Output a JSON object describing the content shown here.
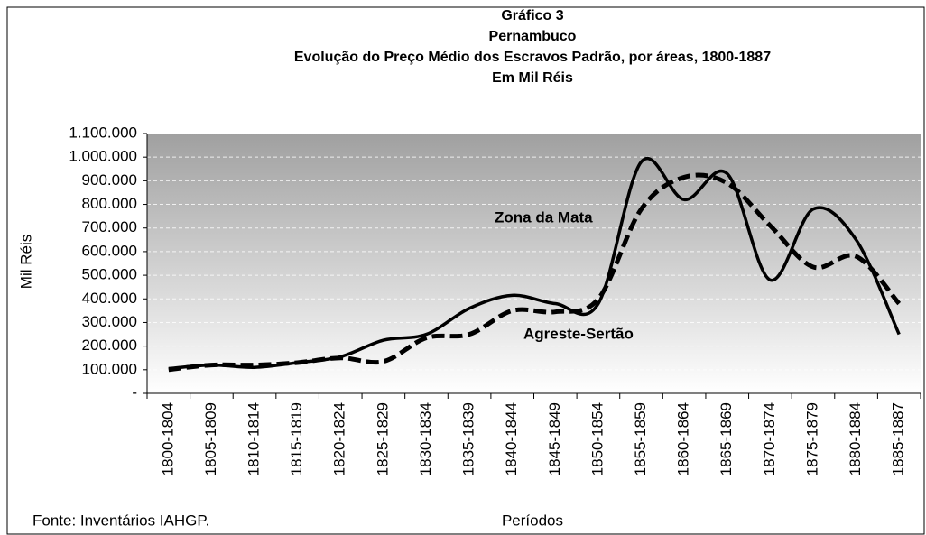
{
  "chart_data": {
    "type": "line",
    "title": [
      "Gráfico 3",
      "Pernambuco",
      "Evolução do Preço Médio dos Escravos Padrão, por áreas, 1800-1887",
      "Em Mil Réis"
    ],
    "y_label": "Mil Réis",
    "x_label": "Períodos",
    "source": "Fonte: Inventários IAHGP.",
    "categories": [
      "1800-1804",
      "1805-1809",
      "1810-1814",
      "1815-1819",
      "1820-1824",
      "1825-1829",
      "1830-1834",
      "1835-1839",
      "1840-1844",
      "1845-1849",
      "1850-1854",
      "1855-1859",
      "1860-1864",
      "1865-1869",
      "1870-1874",
      "1875-1879",
      "1880-1884",
      "1885-1887"
    ],
    "series": [
      {
        "name": "Zona da Mata",
        "color": "#000000",
        "line_style": "solid",
        "values": [
          105000,
          120000,
          110000,
          130000,
          155000,
          225000,
          250000,
          360000,
          415000,
          380000,
          380000,
          980000,
          820000,
          930000,
          480000,
          780000,
          650000,
          250000
        ]
      },
      {
        "name": "Agreste-Sertão",
        "color": "#000000",
        "line_style": "dashed",
        "values": [
          100000,
          120000,
          120000,
          130000,
          150000,
          135000,
          235000,
          250000,
          350000,
          345000,
          400000,
          780000,
          915000,
          890000,
          710000,
          535000,
          580000,
          380000
        ]
      }
    ],
    "ylim": [
      0,
      1100000
    ],
    "yticks": [
      {
        "value": 0,
        "label": "-"
      },
      {
        "value": 100000,
        "label": "100.000"
      },
      {
        "value": 200000,
        "label": "200.000"
      },
      {
        "value": 300000,
        "label": "300.000"
      },
      {
        "value": 400000,
        "label": "400.000"
      },
      {
        "value": 500000,
        "label": "500.000"
      },
      {
        "value": 600000,
        "label": "600.000"
      },
      {
        "value": 700000,
        "label": "700.000"
      },
      {
        "value": 800000,
        "label": "800.000"
      },
      {
        "value": 900000,
        "label": "900.000"
      },
      {
        "value": 1000000,
        "label": "1.000.000"
      },
      {
        "value": 1100000,
        "label": "1.100.000"
      }
    ],
    "grid": true,
    "smooth": true
  }
}
